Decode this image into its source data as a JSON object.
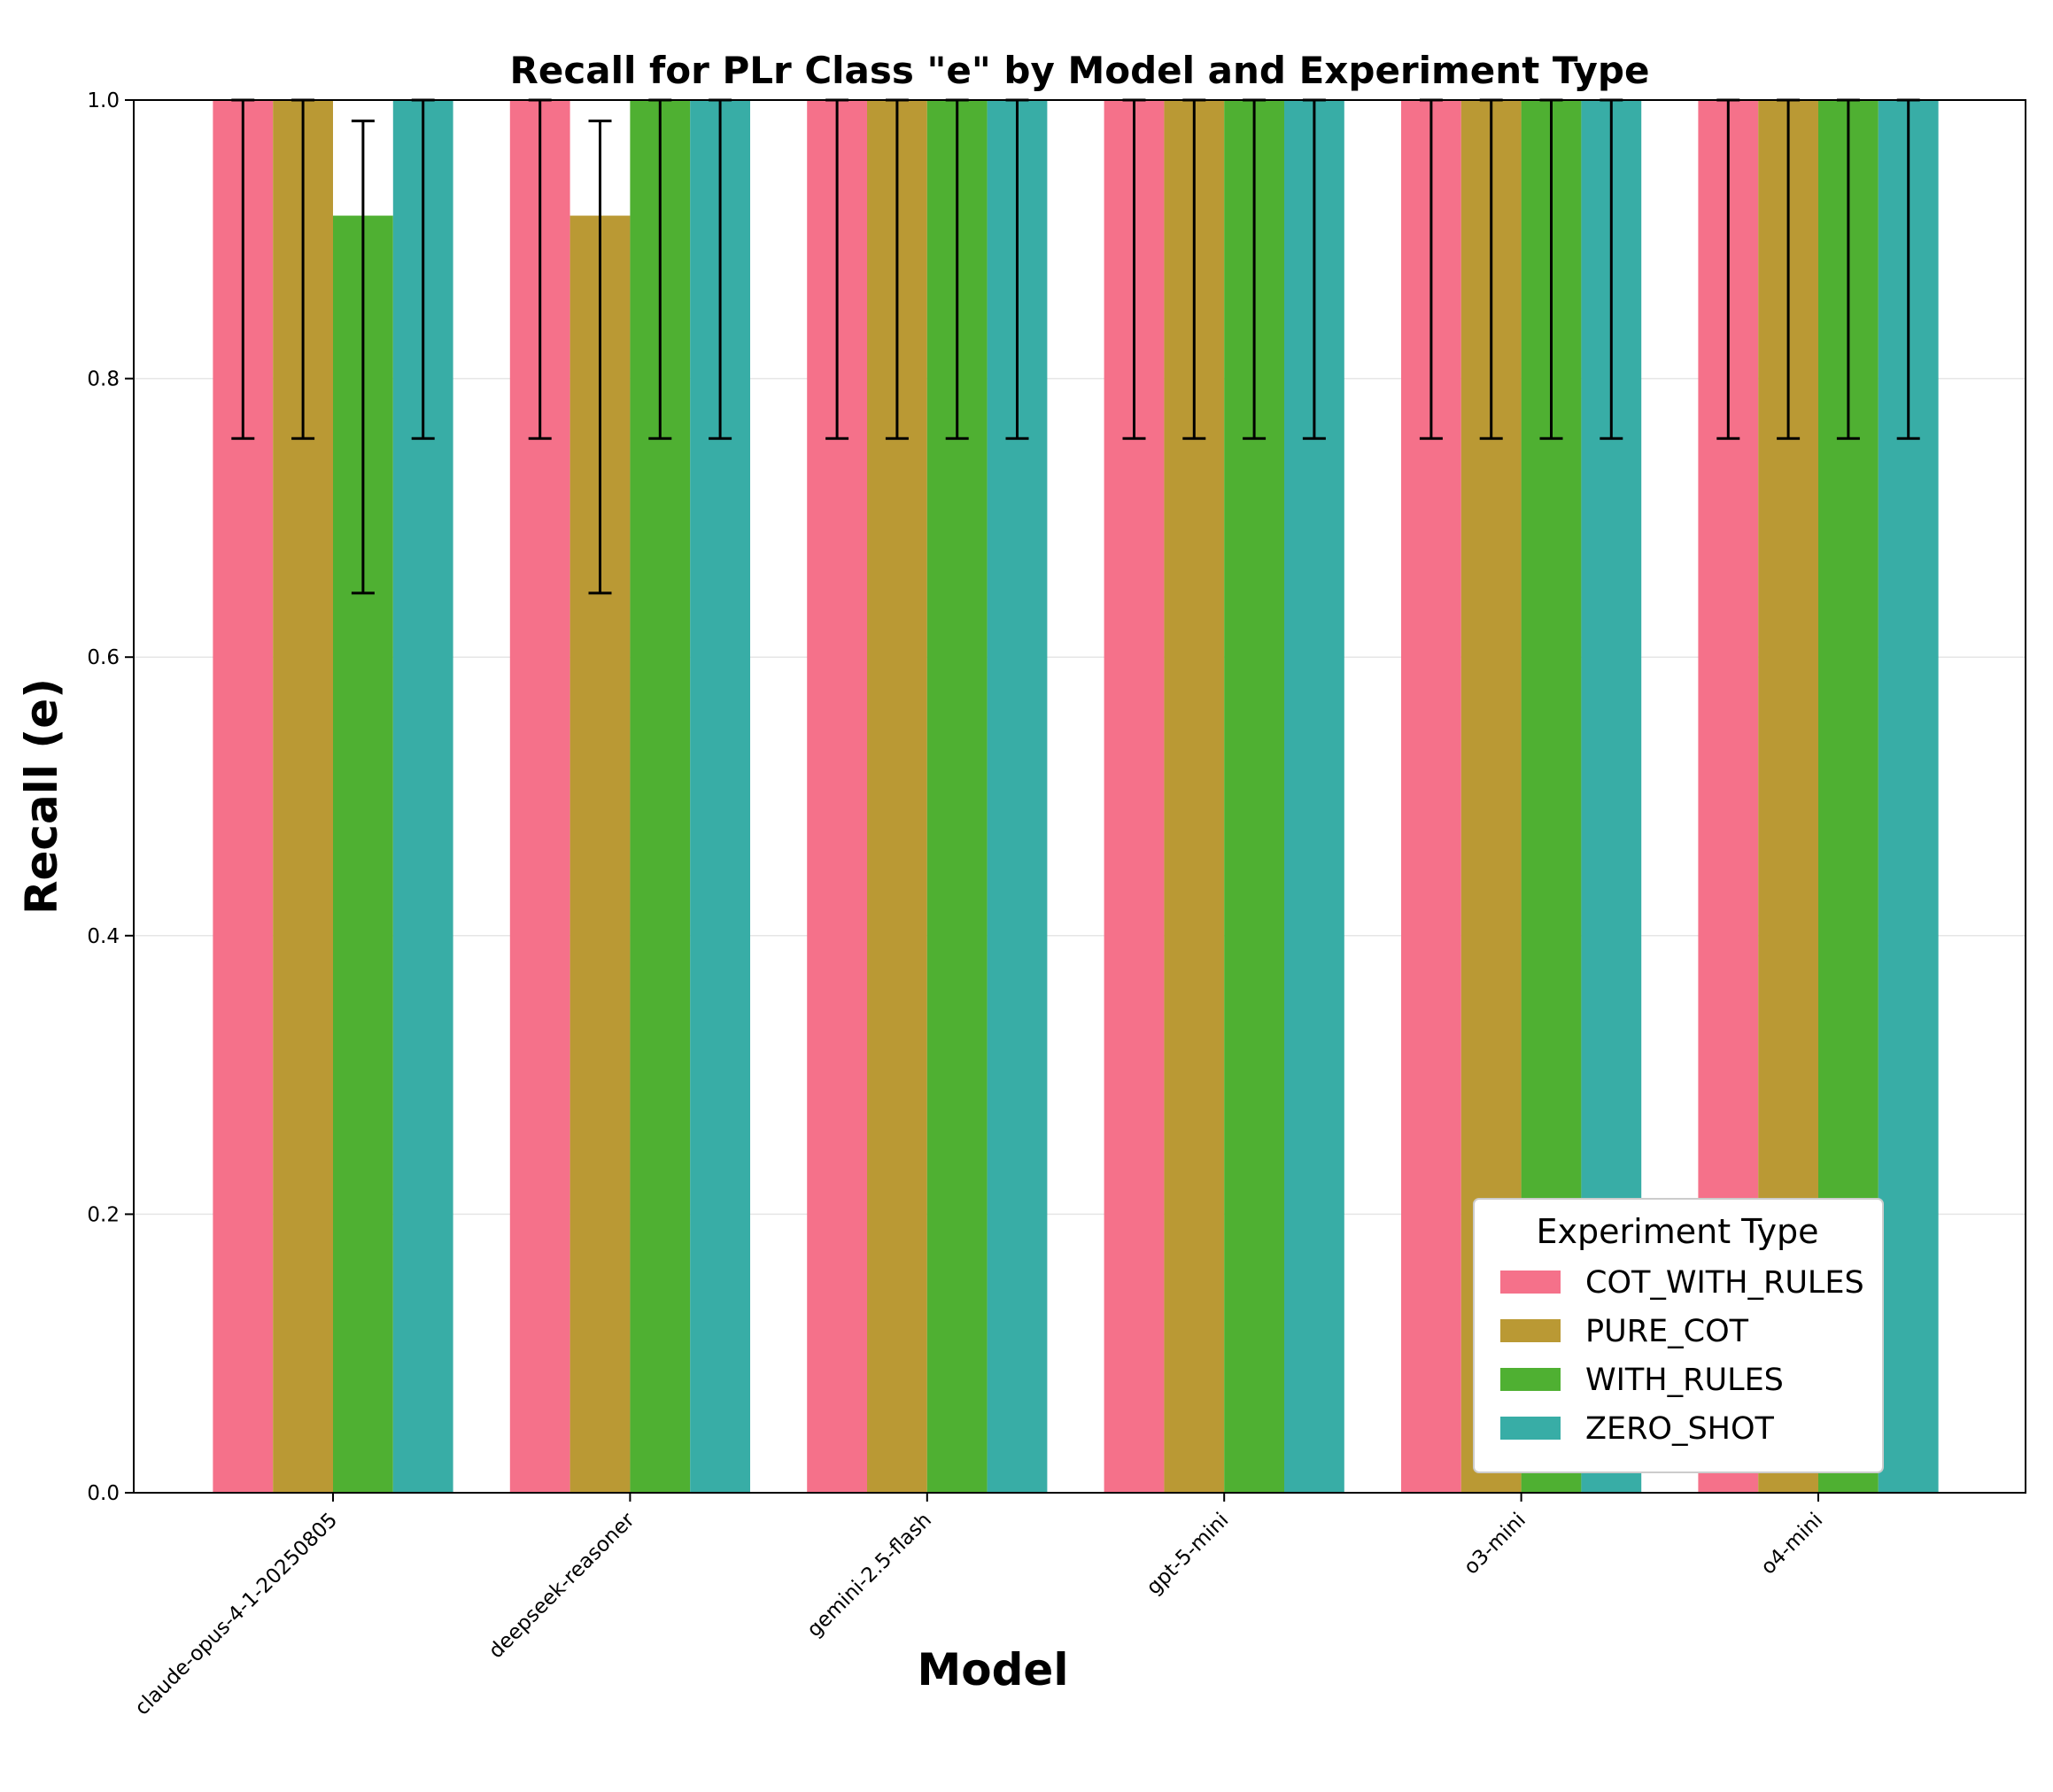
{
  "chart_data": {
    "type": "bar",
    "title": "Recall for PLr Class \"e\" by Model and Experiment Type",
    "xlabel": "Model",
    "ylabel": "Recall (e)",
    "ylim": [
      0.0,
      1.0
    ],
    "yticks": [
      "0.0",
      "0.2",
      "0.4",
      "0.6",
      "0.8",
      "1.0"
    ],
    "grid": "horizontal",
    "legend_title": "Experiment Type",
    "legend_position": "lower-right",
    "categories": [
      "claude-opus-4-1-20250805",
      "deepseek-reasoner",
      "gemini-2.5-flash",
      "gpt-5-mini",
      "o3-mini",
      "o4-mini"
    ],
    "series": [
      {
        "name": "COT_WITH_RULES",
        "color": "#f5718a",
        "values": [
          1.0,
          1.0,
          1.0,
          1.0,
          1.0,
          1.0
        ],
        "error_low": [
          0.757,
          0.757,
          0.757,
          0.757,
          0.757,
          0.757
        ],
        "error_high": [
          1.0,
          1.0,
          1.0,
          1.0,
          1.0,
          1.0
        ]
      },
      {
        "name": "PURE_COT",
        "color": "#ba9934",
        "values": [
          1.0,
          0.917,
          1.0,
          1.0,
          1.0,
          1.0
        ],
        "error_low": [
          0.757,
          0.646,
          0.757,
          0.757,
          0.757,
          0.757
        ],
        "error_high": [
          1.0,
          0.985,
          1.0,
          1.0,
          1.0,
          1.0
        ]
      },
      {
        "name": "WITH_RULES",
        "color": "#4fb032",
        "values": [
          0.917,
          1.0,
          1.0,
          1.0,
          1.0,
          1.0
        ],
        "error_low": [
          0.646,
          0.757,
          0.757,
          0.757,
          0.757,
          0.757
        ],
        "error_high": [
          0.985,
          1.0,
          1.0,
          1.0,
          1.0,
          1.0
        ]
      },
      {
        "name": "ZERO_SHOT",
        "color": "#38ada6",
        "values": [
          1.0,
          1.0,
          1.0,
          1.0,
          1.0,
          1.0
        ],
        "error_low": [
          0.757,
          0.757,
          0.757,
          0.757,
          0.757,
          0.757
        ],
        "error_high": [
          1.0,
          1.0,
          1.0,
          1.0,
          1.0,
          1.0
        ]
      }
    ]
  }
}
